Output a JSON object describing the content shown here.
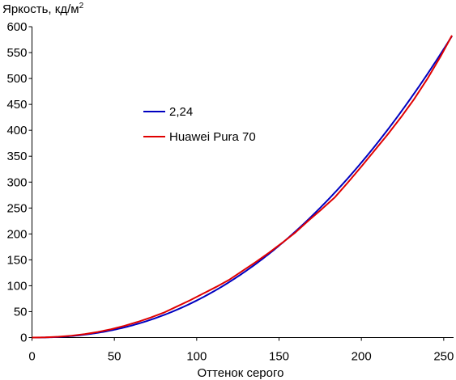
{
  "chart_data": {
    "type": "line",
    "ylabel": "Яркость, кд/м",
    "ylabel_sup": "2",
    "xlabel": "Оттенок серого",
    "xlim": [
      0,
      255
    ],
    "ylim": [
      0,
      600
    ],
    "xticks": [
      0,
      50,
      100,
      150,
      200,
      250
    ],
    "yticks": [
      0,
      50,
      100,
      150,
      200,
      250,
      300,
      350,
      400,
      450,
      500,
      550,
      600
    ],
    "grid": false,
    "legend_position": "middle-left",
    "series": [
      {
        "name": "2,24",
        "color": "#0000c0",
        "gamma": 2.24,
        "ymax": 582
      },
      {
        "name": "Huawei Pura 70",
        "color": "#e00000",
        "x": [
          0,
          8,
          16,
          24,
          32,
          40,
          48,
          56,
          64,
          72,
          80,
          88,
          96,
          104,
          112,
          120,
          128,
          136,
          144,
          152,
          160,
          168,
          176,
          184,
          192,
          200,
          208,
          216,
          224,
          232,
          240,
          248,
          255
        ],
        "y": [
          0,
          0.4,
          1.5,
          3.6,
          6.7,
          10.8,
          16,
          22.5,
          30,
          38.5,
          48,
          60,
          72,
          85,
          98,
          112,
          129,
          146,
          164,
          183,
          203,
          226,
          248,
          271,
          300,
          330,
          361,
          392,
          425,
          460,
          499,
          542,
          583
        ]
      }
    ]
  }
}
